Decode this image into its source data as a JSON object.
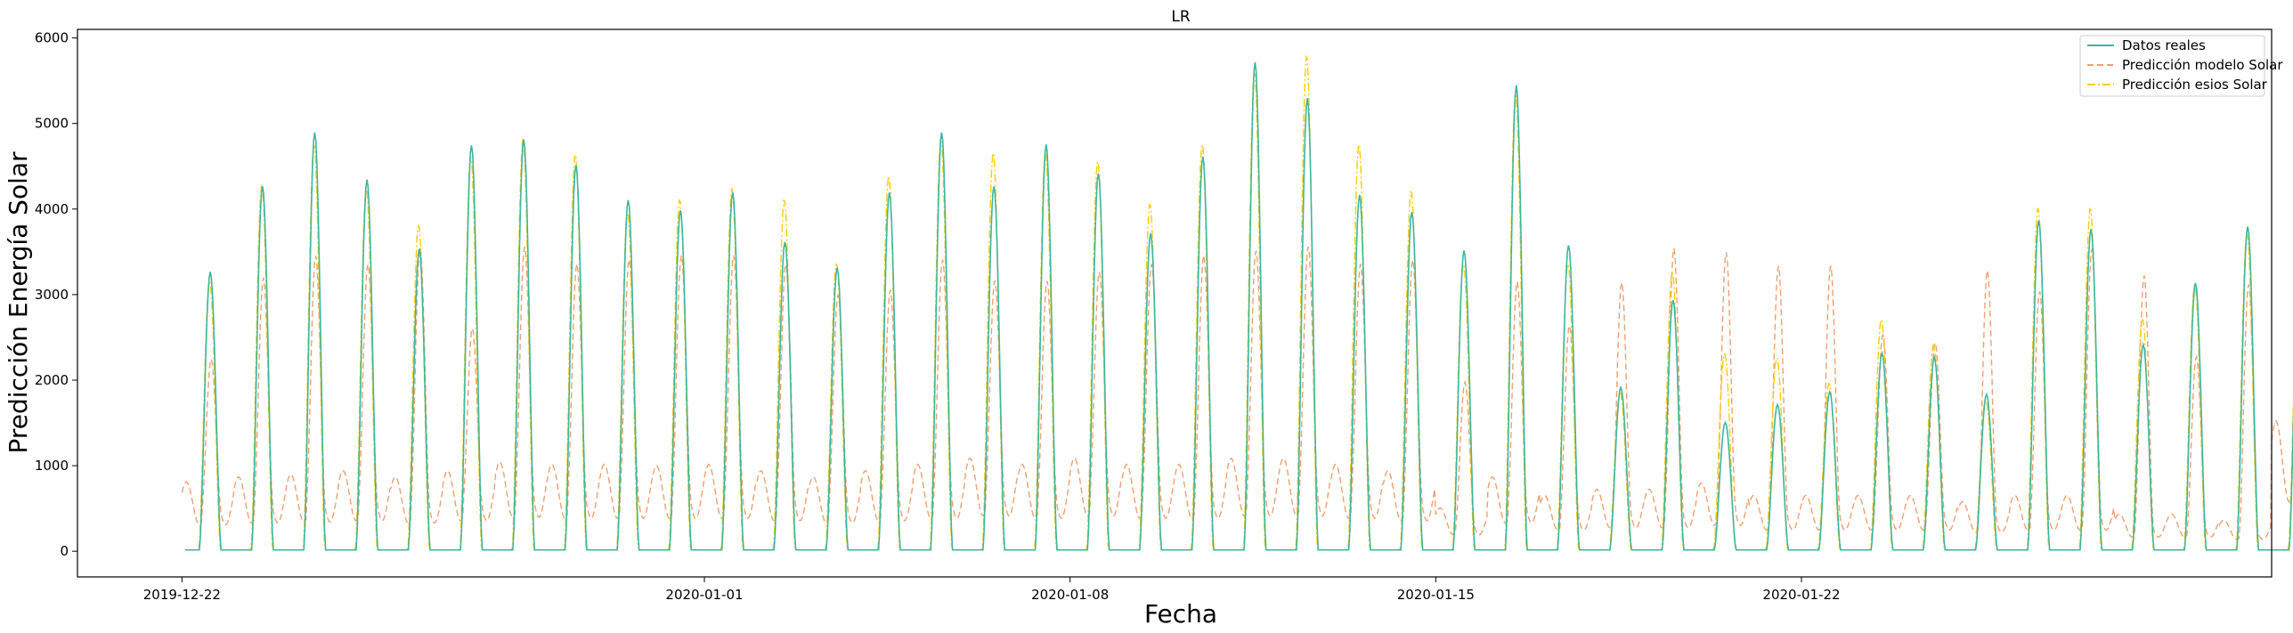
{
  "chart_data": {
    "type": "line",
    "title": "LR",
    "xlabel": "Fecha",
    "ylabel": "Predicción Energía Solar",
    "x_axis": {
      "type": "date",
      "min": "2019-12-20",
      "max": "2020-01-31",
      "ticks": [
        "2019-12-22",
        "2020-01-01",
        "2020-01-08",
        "2020-01-15",
        "2020-01-22"
      ]
    },
    "y_axis": {
      "min": -300,
      "max": 6100,
      "ticks": [
        0,
        1000,
        2000,
        3000,
        4000,
        5000,
        6000
      ]
    },
    "grid": false,
    "legend": {
      "position": "upper right"
    },
    "days": [
      "2019-12-22",
      "2019-12-23",
      "2019-12-24",
      "2019-12-25",
      "2019-12-26",
      "2019-12-27",
      "2019-12-28",
      "2019-12-29",
      "2019-12-30",
      "2019-12-31",
      "2020-01-01",
      "2020-01-02",
      "2020-01-03",
      "2020-01-04",
      "2020-01-05",
      "2020-01-06",
      "2020-01-07",
      "2020-01-08",
      "2020-01-09",
      "2020-01-10",
      "2020-01-11",
      "2020-01-12",
      "2020-01-13",
      "2020-01-14",
      "2020-01-15",
      "2020-01-16",
      "2020-01-17",
      "2020-01-18",
      "2020-01-19",
      "2020-01-20",
      "2020-01-21",
      "2020-01-22",
      "2020-01-23",
      "2020-01-24",
      "2020-01-25",
      "2020-01-26",
      "2020-01-27",
      "2020-01-28",
      "2020-01-29",
      "2020-01-30",
      "2020-01-31"
    ],
    "series": [
      {
        "name": "Datos reales",
        "color": "#3cb7a0",
        "style": "solid",
        "daily_peak": [
          3250,
          4250,
          4880,
          4330,
          3520,
          4730,
          4800,
          4500,
          4090,
          3970,
          4180,
          3600,
          3300,
          4180,
          4880,
          4250,
          4740,
          4400,
          3700,
          4600,
          5700,
          5280,
          4150,
          3950,
          3500,
          5430,
          3560,
          1900,
          2920,
          1490,
          1700,
          1850,
          2300,
          2250,
          1820,
          3850,
          3750,
          2400,
          3120,
          3780,
          3480
        ]
      },
      {
        "name": "Predicción modelo Solar",
        "color": "#f0a070",
        "style": "dashed",
        "daily_peak": [
          2200,
          3150,
          3400,
          3300,
          3500,
          2550,
          3500,
          3300,
          3350,
          3400,
          3400,
          3300,
          2950,
          3000,
          3350,
          3100,
          3100,
          3200,
          3300,
          3400,
          3450,
          3500,
          3300,
          3350,
          1950,
          3100,
          2600,
          3100,
          3500,
          3450,
          3300,
          3300,
          2500,
          2400,
          3250,
          3000,
          3500,
          3200,
          2250,
          3100,
          2700
        ],
        "night_level": [
          560,
          600,
          620,
          650,
          600,
          650,
          720,
          700,
          700,
          690,
          700,
          650,
          600,
          650,
          700,
          750,
          700,
          750,
          700,
          700,
          750,
          750,
          700,
          650,
          350,
          600,
          450,
          500,
          500,
          550,
          450,
          450,
          450,
          450,
          400,
          450,
          450,
          300,
          300,
          250,
          1050
        ]
      },
      {
        "name": "Predicción esios Solar",
        "color": "#ffcc00",
        "style": "dashdot",
        "daily_peak": [
          3150,
          4270,
          4750,
          4230,
          3800,
          4600,
          4800,
          4630,
          3950,
          4100,
          4230,
          4100,
          3350,
          4380,
          4800,
          4650,
          4650,
          4550,
          4050,
          4750,
          5600,
          5780,
          4750,
          4200,
          3350,
          5350,
          3350,
          1850,
          3250,
          2300,
          2250,
          1950,
          2700,
          2400,
          1750,
          4000,
          4000,
          2700,
          3100,
          3700,
          3400
        ]
      }
    ]
  }
}
